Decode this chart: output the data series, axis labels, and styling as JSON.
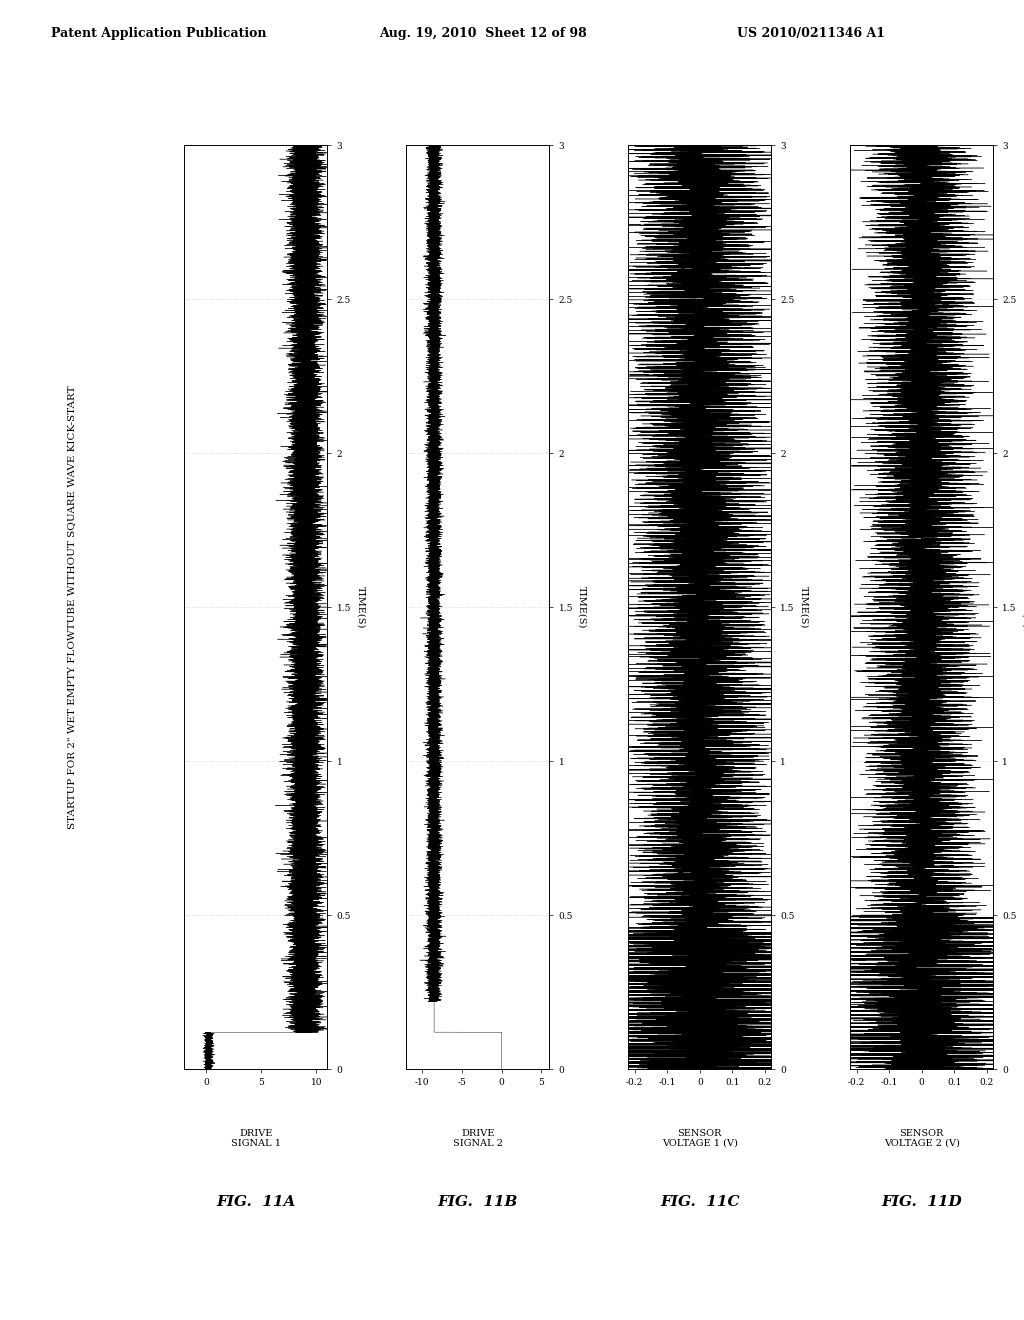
{
  "header_left": "Patent Application Publication",
  "header_center": "Aug. 19, 2010  Sheet 12 of 98",
  "header_right": "US 2010/0211346 A1",
  "title": "STARTUP FOR 2\" WET EMPTY FLOWTUBE WITHOUT SQUARE WAVE KICK-START",
  "subplots": [
    {
      "fig_label": "FIG.  11A",
      "ylabel_lines": [
        "DRIVE",
        "SIGNAL 1"
      ],
      "xlim": [
        -2,
        11
      ],
      "xticks": [
        0,
        5,
        10
      ],
      "xticklabels": [
        "0",
        "5",
        "10"
      ],
      "signal_type": "drive1"
    },
    {
      "fig_label": "FIG.  11B",
      "ylabel_lines": [
        "DRIVE",
        "SIGNAL 2"
      ],
      "xlim": [
        -12,
        6
      ],
      "xticks": [
        -10,
        -5,
        0,
        5
      ],
      "xticklabels": [
        "-10",
        "-5",
        "0",
        "5"
      ],
      "signal_type": "drive2"
    },
    {
      "fig_label": "FIG.  11C",
      "ylabel_lines": [
        "SENSOR",
        "VOLTAGE 1 (V)"
      ],
      "xlim": [
        -0.22,
        0.22
      ],
      "xticks": [
        -0.2,
        -0.1,
        0,
        0.1,
        0.2
      ],
      "xticklabels": [
        "-0.2",
        "-0.1",
        "0",
        "0.1",
        "0.2"
      ],
      "signal_type": "sensor1"
    },
    {
      "fig_label": "FIG.  11D",
      "ylabel_lines": [
        "SENSOR",
        "VOLTAGE 2 (V)"
      ],
      "xlim": [
        -0.22,
        0.22
      ],
      "xticks": [
        -0.2,
        -0.1,
        0,
        0.1,
        0.2
      ],
      "xticklabels": [
        "-0.2",
        "-0.1",
        "0",
        "0.1",
        "0.2"
      ],
      "signal_type": "sensor2"
    }
  ],
  "ylim": [
    0,
    3
  ],
  "yticks": [
    0,
    0.5,
    1,
    1.5,
    2,
    2.5,
    3
  ],
  "yticklabels": [
    "0",
    "0.5",
    "1",
    "1.5",
    "2",
    "2.5",
    "3"
  ],
  "ylabel": "TIME(S)",
  "background_color": "#ffffff",
  "signal_color": "#000000",
  "grid_color": "#bbbbbb",
  "seed": 42
}
